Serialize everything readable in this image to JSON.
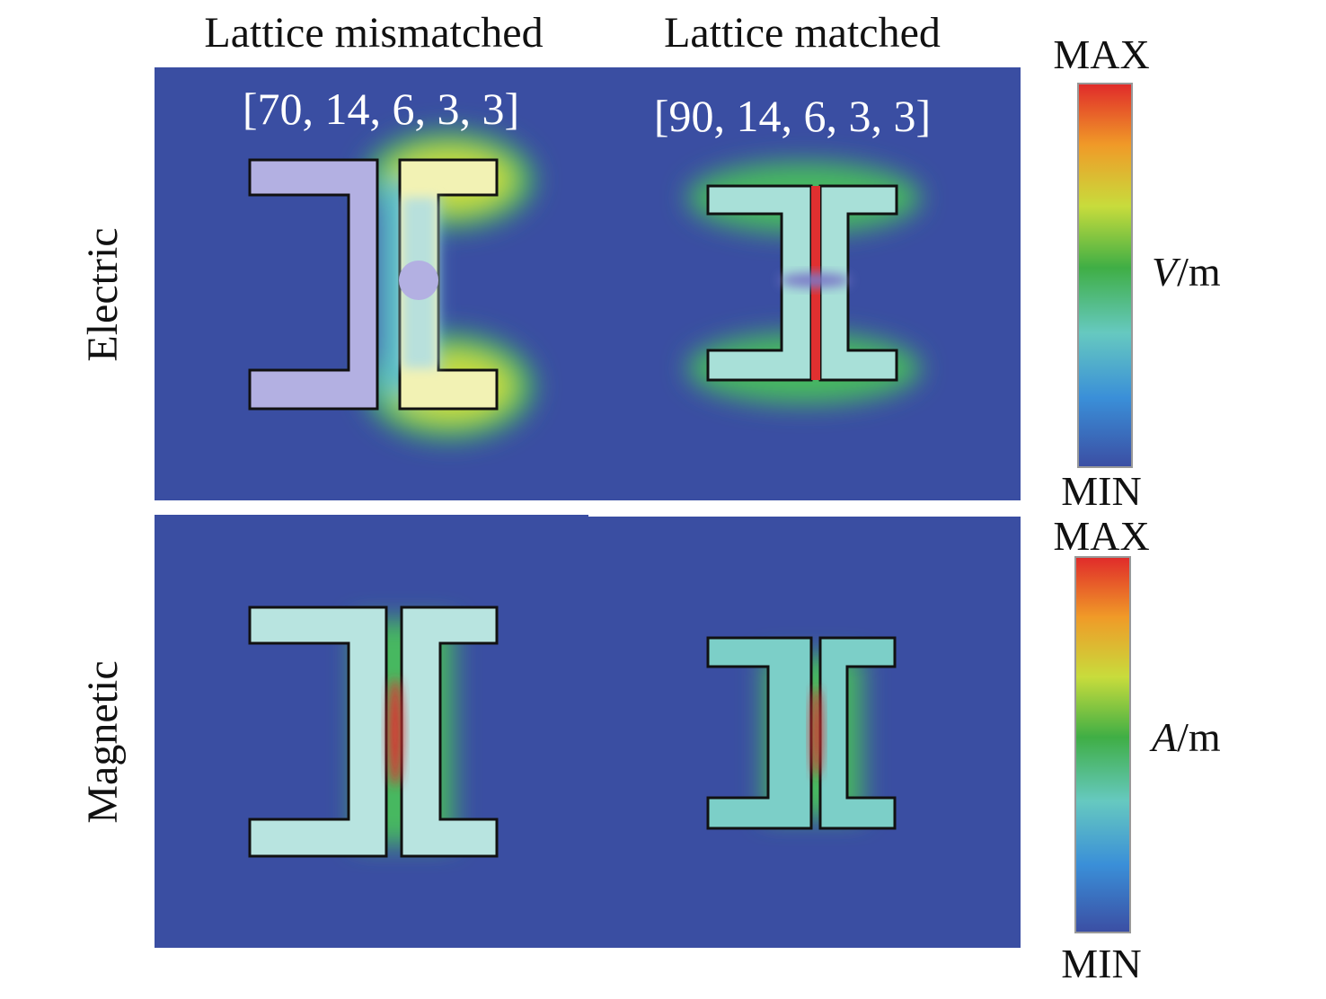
{
  "columns": [
    "Lattice mismatched",
    "Lattice matched"
  ],
  "rows": [
    "Electric",
    "Magnetic"
  ],
  "panels": [
    {
      "annotation": "[70, 14, 6, 3, 3]"
    },
    {
      "annotation": "[90, 14, 6, 3, 3]"
    }
  ],
  "colorbars": [
    {
      "max": "MAX",
      "min": "MIN",
      "unit_symbol": "V",
      "unit_suffix": "/m"
    },
    {
      "max": "MAX",
      "min": "MIN",
      "unit_symbol": "A",
      "unit_suffix": "/m"
    }
  ]
}
